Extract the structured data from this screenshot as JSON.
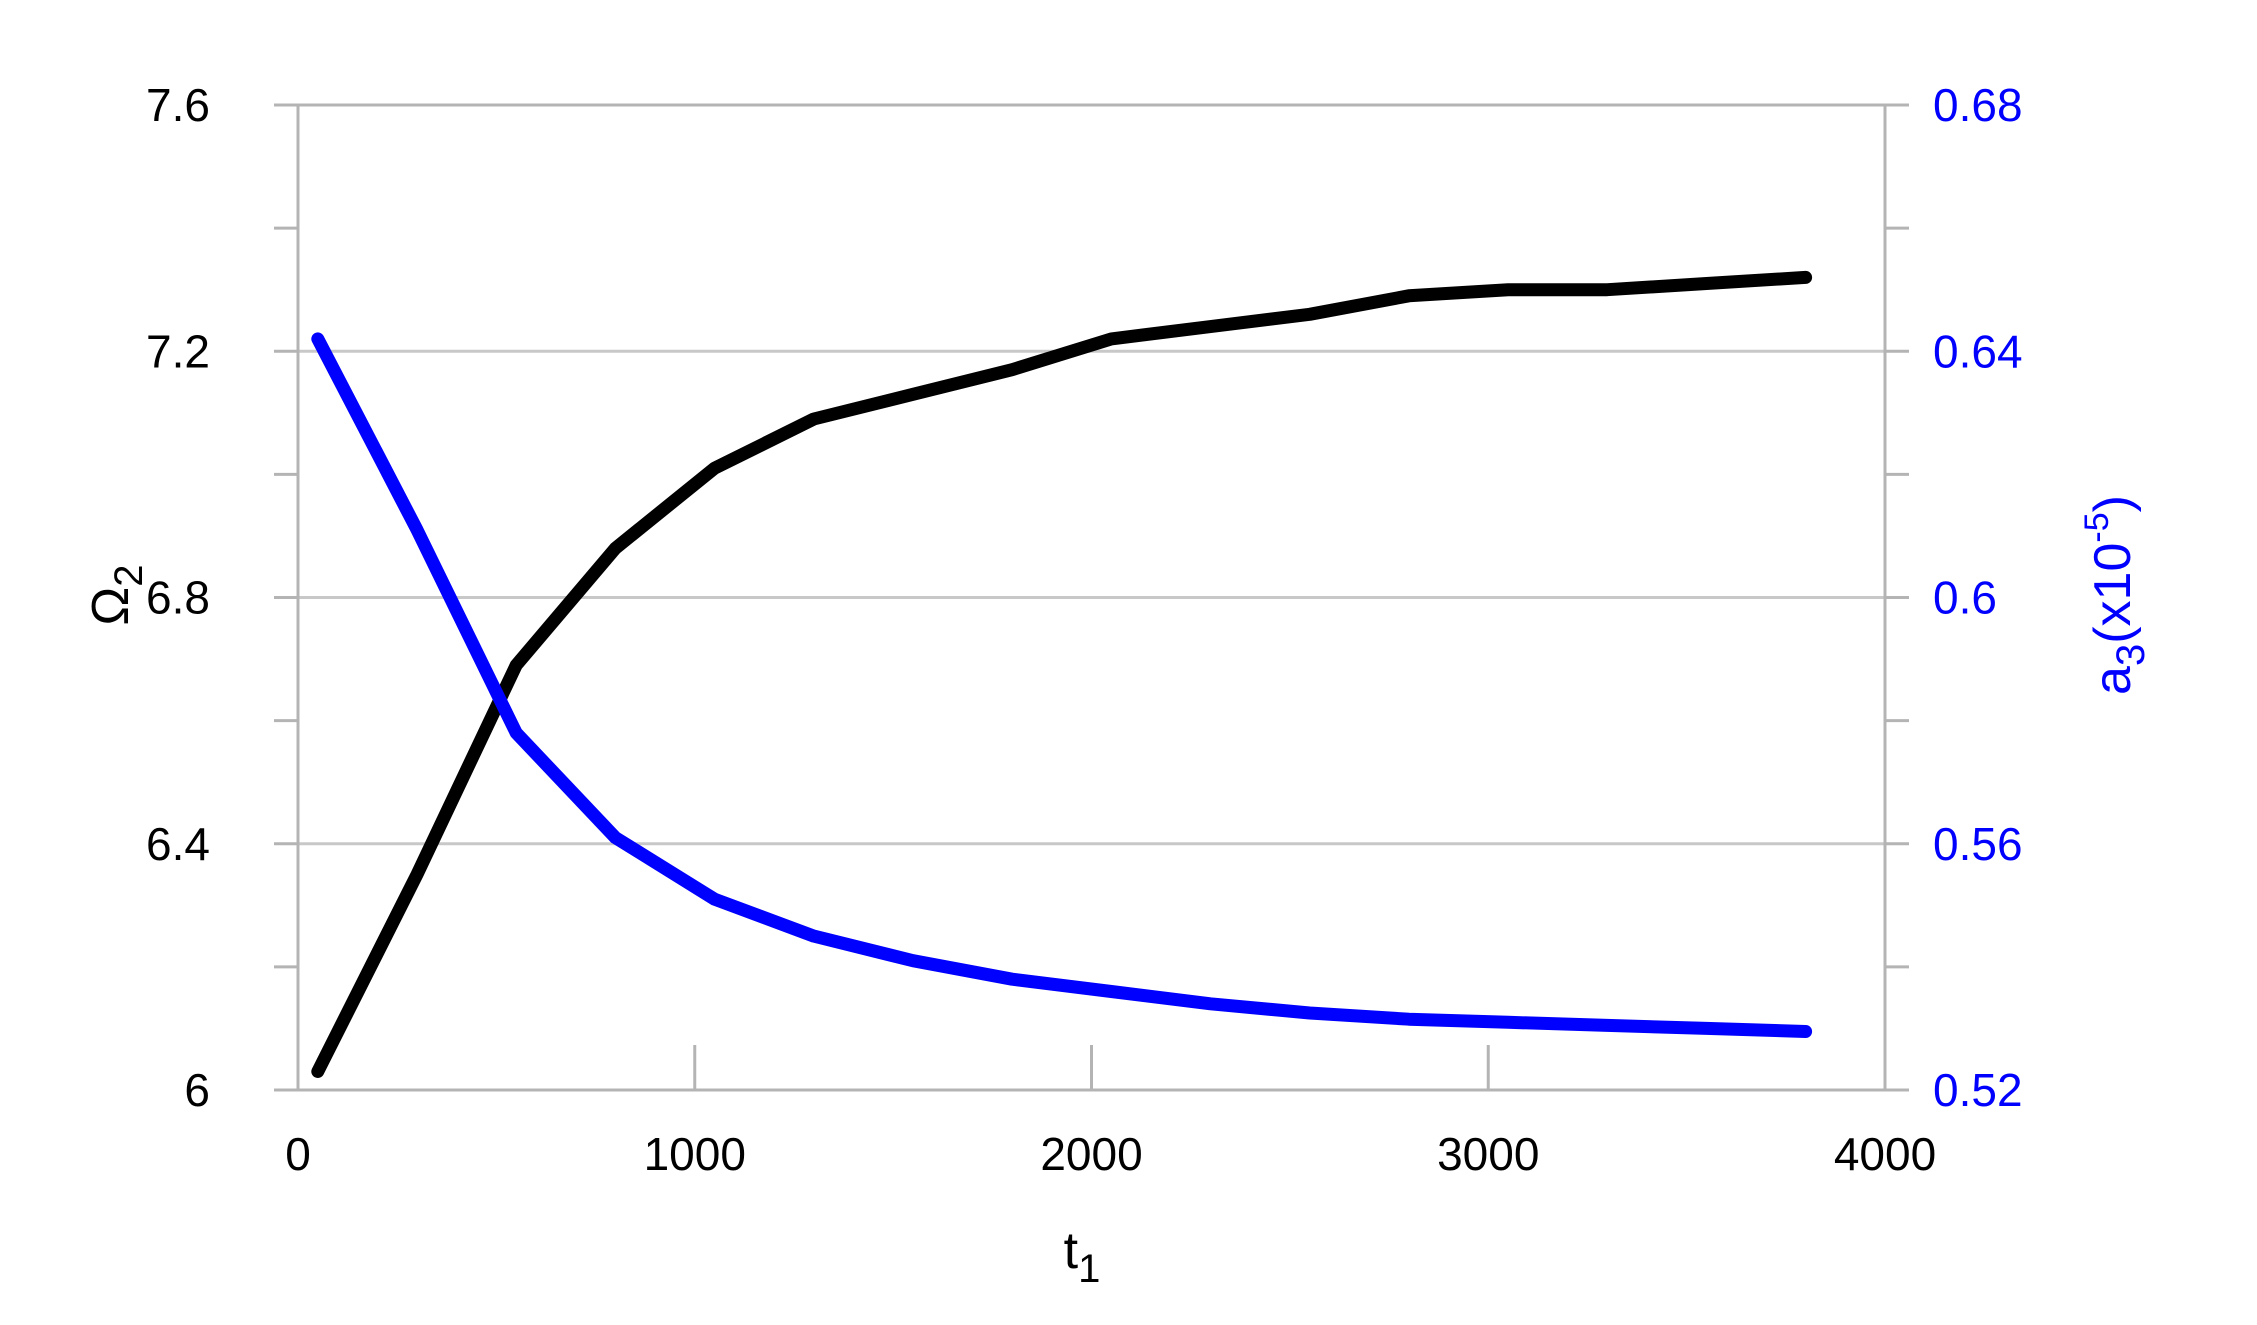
{
  "chart_data": {
    "type": "line",
    "xlabel": {
      "base": "t",
      "sub": "1"
    },
    "ylabel_left": {
      "base": "Ω",
      "sub": "2"
    },
    "ylabel_right": {
      "base": "a",
      "sub": "3",
      "mid": "(x10",
      "sup": "-5",
      "end": ")"
    },
    "xlim": [
      0,
      4000
    ],
    "ylim_left": [
      6,
      7.6
    ],
    "ylim_right": [
      0.52,
      0.68
    ],
    "x_ticks": [
      "0",
      "1000",
      "2000",
      "3000",
      "4000"
    ],
    "y_left_ticks": [
      "6",
      "6.4",
      "6.8",
      "7.2",
      "7.6"
    ],
    "y_right_ticks": [
      "0.52",
      "0.56",
      "0.6",
      "0.64",
      "0.68"
    ],
    "grid": true,
    "colors": {
      "left_series": "#000000",
      "right_series": "#0000ff",
      "grid": "#c8c8c8",
      "axis": "#b4b4b4"
    },
    "series": [
      {
        "axis": "left",
        "x": [
          50,
          300,
          550,
          800,
          1050,
          1300,
          1550,
          1800,
          2050,
          2300,
          2550,
          2800,
          3050,
          3300,
          3550,
          3800
        ],
        "y": [
          6.03,
          6.35,
          6.69,
          6.88,
          7.01,
          7.09,
          7.13,
          7.17,
          7.22,
          7.24,
          7.26,
          7.29,
          7.3,
          7.3,
          7.31,
          7.32
        ]
      },
      {
        "axis": "right",
        "x": [
          50,
          300,
          550,
          800,
          1050,
          1300,
          1550,
          1800,
          2050,
          2300,
          2550,
          2800,
          3050,
          3300,
          3550,
          3800
        ],
        "y": [
          0.642,
          0.611,
          0.578,
          0.561,
          0.551,
          0.545,
          0.541,
          0.538,
          0.536,
          0.534,
          0.5325,
          0.5315,
          0.531,
          0.5305,
          0.53,
          0.5295
        ]
      }
    ]
  }
}
